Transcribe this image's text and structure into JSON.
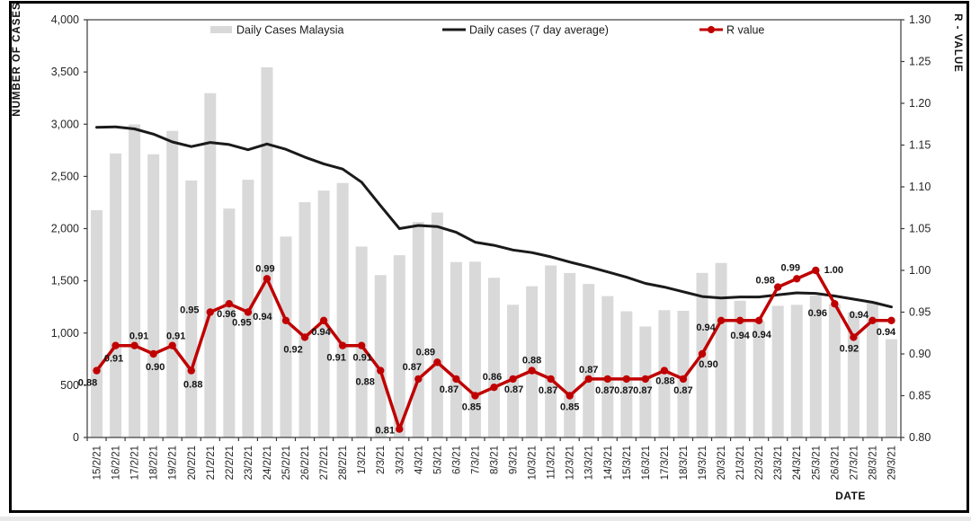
{
  "chart_data": {
    "type": "combo",
    "title": "",
    "grid": false,
    "legend_position": "top-inside",
    "x": [
      "15/2/21",
      "16/2/21",
      "17/2/21",
      "18/2/21",
      "19/2/21",
      "20/2/21",
      "21/2/21",
      "22/2/21",
      "23/2/21",
      "24/2/21",
      "25/2/21",
      "26/2/21",
      "27/2/21",
      "28/2/21",
      "1/3/21",
      "2/3/21",
      "3/3/21",
      "4/3/21",
      "5/3/21",
      "6/3/21",
      "7/3/21",
      "8/3/21",
      "9/3/21",
      "10/3/21",
      "11/3/21",
      "12/3/21",
      "13/3/21",
      "14/3/21",
      "15/3/21",
      "16/3/21",
      "17/3/21",
      "18/3/21",
      "19/3/21",
      "20/3/21",
      "21/3/21",
      "22/3/21",
      "23/3/21",
      "24/3/21",
      "25/3/21",
      "26/3/21",
      "27/3/21",
      "28/3/21",
      "29/3/21"
    ],
    "x_axis": {
      "title": "DATE"
    },
    "left_axis": {
      "title": "NUMBER OF CASES",
      "min": 0,
      "max": 4000,
      "step": 500,
      "tick_labels": [
        "0",
        "500",
        "1,000",
        "1,500",
        "2,000",
        "2,500",
        "3,000",
        "3,500",
        "4,000"
      ]
    },
    "right_axis": {
      "title": "R - VALUE",
      "min": 0.8,
      "max": 1.3,
      "step": 0.05,
      "tick_labels": [
        "0.80",
        "0.85",
        "0.90",
        "0.95",
        "1.00",
        "1.05",
        "1.10",
        "1.15",
        "1.20",
        "1.25",
        "1.30"
      ]
    },
    "series": [
      {
        "name": "Daily Cases Malaysia",
        "type": "bar",
        "axis": "left",
        "color": "#d9d9d9",
        "values": [
          2176,
          2720,
          2998,
          2712,
          2936,
          2461,
          3297,
          2192,
          2468,
          3545,
          1924,
          2253,
          2364,
          2437,
          1828,
          1555,
          1745,
          2063,
          2154,
          1680,
          1683,
          1529,
          1271,
          1448,
          1647,
          1575,
          1470,
          1354,
          1208,
          1063,
          1219,
          1213,
          1576,
          1671,
          1309,
          1114,
          1261,
          1270,
          1360,
          1275,
          1199,
          1302,
          941
        ]
      },
      {
        "name": "Daily cases (7 day average)",
        "type": "line",
        "axis": "left",
        "color": "#1a1a1a",
        "values": [
          2970,
          2975,
          2955,
          2905,
          2830,
          2785,
          2825,
          2805,
          2755,
          2810,
          2760,
          2685,
          2620,
          2570,
          2445,
          2220,
          2000,
          2030,
          2020,
          1965,
          1870,
          1840,
          1795,
          1770,
          1730,
          1680,
          1635,
          1585,
          1535,
          1475,
          1440,
          1395,
          1350,
          1335,
          1345,
          1345,
          1365,
          1385,
          1380,
          1355,
          1325,
          1295,
          1250
        ]
      },
      {
        "name": "R value",
        "type": "line",
        "axis": "right",
        "color": "#c00000",
        "markers": true,
        "data_labels": true,
        "values": [
          0.88,
          0.91,
          0.91,
          0.9,
          0.91,
          0.88,
          0.95,
          0.96,
          0.95,
          0.99,
          0.94,
          0.92,
          0.94,
          0.91,
          0.91,
          0.88,
          0.81,
          0.87,
          0.89,
          0.87,
          0.85,
          0.86,
          0.87,
          0.88,
          0.87,
          0.85,
          0.87,
          0.87,
          0.87,
          0.87,
          0.88,
          0.87,
          0.9,
          0.94,
          0.94,
          0.94,
          0.98,
          0.99,
          1.0,
          0.96,
          0.92,
          0.94,
          0.94
        ],
        "label_offsets": [
          [
            -10,
            13
          ],
          [
            -2,
            14
          ],
          [
            5,
            -11
          ],
          [
            2,
            14
          ],
          [
            4,
            -11
          ],
          [
            2,
            15
          ],
          [
            -23,
            -3
          ],
          [
            -3,
            11
          ],
          [
            -7,
            11
          ],
          [
            -2,
            -12
          ],
          [
            -26,
            -5
          ],
          [
            -13,
            13
          ],
          [
            -3,
            12
          ],
          [
            -7,
            13
          ],
          [
            1,
            13
          ],
          [
            -17,
            12
          ],
          [
            -16,
            1
          ],
          [
            -7,
            -14
          ],
          [
            -13,
            -12
          ],
          [
            -8,
            11
          ],
          [
            -4,
            12
          ],
          [
            -2,
            -12
          ],
          [
            1,
            11
          ],
          [
            0,
            -12
          ],
          [
            -3,
            12
          ],
          [
            0,
            12
          ],
          [
            0,
            -11
          ],
          [
            -3,
            12
          ],
          [
            -3,
            12
          ],
          [
            -3,
            12
          ],
          [
            1,
            11
          ],
          [
            0,
            12
          ],
          [
            7,
            11
          ],
          [
            -17,
            7
          ],
          [
            0,
            16
          ],
          [
            3,
            15
          ],
          [
            -14,
            -8
          ],
          [
            -7,
            -13
          ],
          [
            20,
            -1
          ],
          [
            -19,
            10
          ],
          [
            -5,
            12
          ],
          [
            -15,
            -7
          ],
          [
            -6,
            12
          ]
        ]
      }
    ]
  }
}
